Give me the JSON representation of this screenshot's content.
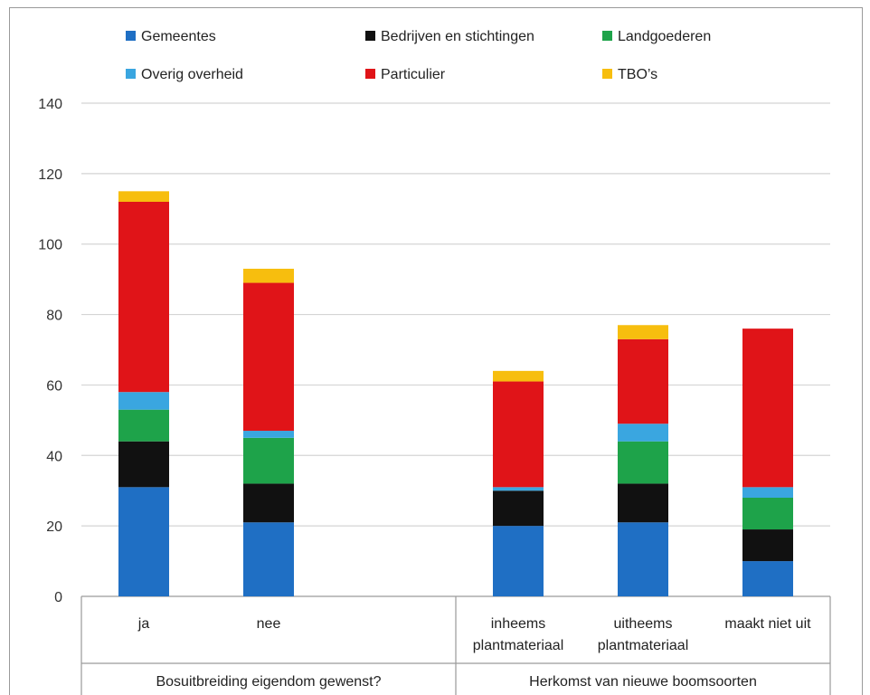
{
  "chart_data": {
    "type": "bar",
    "stacked": true,
    "categories": [
      [
        "ja"
      ],
      [
        "nee"
      ],
      [],
      [
        "inheems",
        "plantmateriaal"
      ],
      [
        "uitheems",
        "plantmateriaal"
      ],
      [
        "maakt niet uit"
      ]
    ],
    "groups": [
      {
        "label": "Bosuitbreiding eigendom gewenst?",
        "categories": [
          0,
          1,
          2
        ]
      },
      {
        "label": "Herkomst van nieuwe boomsoorten",
        "categories": [
          3,
          4,
          5
        ]
      }
    ],
    "series": [
      {
        "name": "Gemeentes",
        "color": "#1f6fc4",
        "values": [
          31,
          21,
          0,
          20,
          21,
          10
        ]
      },
      {
        "name": "Bedrijven en stichtingen",
        "color": "#111111",
        "values": [
          13,
          11,
          0,
          10,
          11,
          9
        ]
      },
      {
        "name": "Landgoederen",
        "color": "#1ea34a",
        "values": [
          9,
          13,
          0,
          0,
          12,
          9
        ]
      },
      {
        "name": "Overig overheid",
        "color": "#3aa6e0",
        "values": [
          5,
          2,
          0,
          1,
          5,
          3
        ]
      },
      {
        "name": "Particulier",
        "color": "#e01418",
        "values": [
          54,
          42,
          0,
          30,
          24,
          45
        ]
      },
      {
        "name": "TBO's",
        "color": "#f7be0e",
        "values": [
          3,
          4,
          0,
          3,
          4,
          0
        ]
      }
    ],
    "legend_labels": [
      "Gemeentes",
      "Bedrijven en stichtingen",
      "Landgoederen",
      "Overig overheid",
      "Particulier",
      "TBO’s"
    ],
    "ylim": [
      0,
      140
    ],
    "yticks": [
      0,
      20,
      40,
      60,
      80,
      100,
      120,
      140
    ],
    "grid": true,
    "legend_position": "top"
  }
}
